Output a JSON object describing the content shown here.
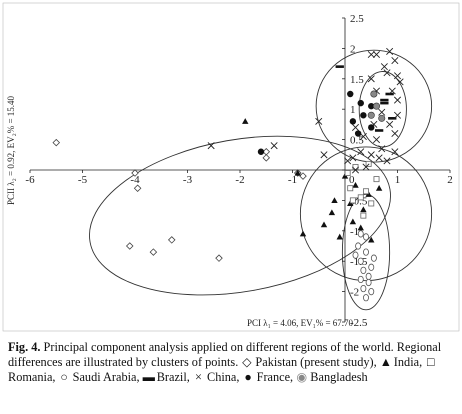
{
  "chart_data": {
    "type": "scatter",
    "xlabel": "PCI λ₁ = 4.06, EV₁% = 67.70",
    "ylabel": "PCII λ₂ = 0.92, EV₂% = 15.40",
    "xlim": [
      -6,
      2
    ],
    "ylim": [
      -2.5,
      2.5
    ],
    "x_ticks": [
      "-6",
      "-5",
      "-4",
      "-3",
      "-2",
      "-1",
      "0",
      "1",
      "2"
    ],
    "y_ticks": [
      "2.5",
      "2",
      "1.5",
      "1",
      "0.5",
      "0",
      "-0.5",
      "-1",
      "-1.5",
      "-2",
      "-2.5"
    ],
    "ellipses": [
      {
        "cx": -2.0,
        "cy": -0.75,
        "rx": 2.9,
        "ry": 1.25,
        "rotation_deg": 10
      },
      {
        "cx": 0.4,
        "cy": -0.72,
        "rx": 1.25,
        "ry": 1.1,
        "rotation_deg": 0
      },
      {
        "cx": 0.55,
        "cy": 1.05,
        "rx": 1.1,
        "ry": 0.92,
        "rotation_deg": 0
      },
      {
        "cx": 0.72,
        "cy": 1.0,
        "rx": 0.45,
        "ry": 0.62,
        "rotation_deg": 0
      },
      {
        "cx": 0.4,
        "cy": -1.35,
        "rx": 0.45,
        "ry": 0.95,
        "rotation_deg": 0
      }
    ],
    "series": [
      {
        "name": "Pakistan (present study)",
        "marker": "diamond",
        "color": "#444444",
        "points": [
          [
            -5.5,
            0.45
          ],
          [
            -4.0,
            -0.05
          ],
          [
            -3.95,
            -0.3
          ],
          [
            -4.1,
            -1.25
          ],
          [
            -3.65,
            -1.35
          ],
          [
            -3.3,
            -1.15
          ],
          [
            -2.4,
            -1.45
          ],
          [
            -1.5,
            0.3
          ],
          [
            -1.5,
            0.2
          ],
          [
            -0.9,
            -0.05
          ],
          [
            -0.8,
            -0.1
          ]
        ]
      },
      {
        "name": "India",
        "marker": "triangle",
        "color": "#111111",
        "points": [
          [
            -1.9,
            0.8
          ],
          [
            -0.9,
            -0.05
          ],
          [
            0.0,
            -0.1
          ],
          [
            -0.2,
            -0.5
          ],
          [
            0.1,
            -0.55
          ],
          [
            -0.25,
            -0.7
          ],
          [
            0.35,
            -0.65
          ],
          [
            0.45,
            -0.4
          ],
          [
            -0.1,
            -1.1
          ],
          [
            -0.8,
            -1.05
          ],
          [
            0.15,
            -0.85
          ],
          [
            0.3,
            -0.95
          ],
          [
            0.5,
            -1.15
          ],
          [
            -0.4,
            -0.9
          ],
          [
            0.2,
            -0.25
          ],
          [
            0.65,
            -0.3
          ]
        ]
      },
      {
        "name": "Romania",
        "marker": "square",
        "color": "#666666",
        "points": [
          [
            0.05,
            -0.05
          ],
          [
            0.2,
            0.05
          ],
          [
            0.3,
            -0.45
          ],
          [
            0.4,
            -0.35
          ],
          [
            0.5,
            -0.55
          ],
          [
            0.15,
            -0.5
          ],
          [
            0.6,
            -0.15
          ],
          [
            0.35,
            -0.75
          ],
          [
            0.45,
            0.1
          ],
          [
            0.1,
            -0.3
          ]
        ]
      },
      {
        "name": "Saudi Arabia",
        "marker": "circle",
        "color": "#555555",
        "points": [
          [
            0.3,
            -1.05
          ],
          [
            0.4,
            -1.1
          ],
          [
            0.25,
            -1.25
          ],
          [
            0.4,
            -1.35
          ],
          [
            0.3,
            -1.5
          ],
          [
            0.5,
            -1.6
          ],
          [
            0.35,
            -1.65
          ],
          [
            0.45,
            -1.75
          ],
          [
            0.3,
            -1.8
          ],
          [
            0.45,
            -1.85
          ],
          [
            0.35,
            -1.95
          ],
          [
            0.5,
            -2.0
          ],
          [
            0.4,
            -2.1
          ],
          [
            0.55,
            -1.45
          ],
          [
            0.2,
            -1.4
          ]
        ]
      },
      {
        "name": "Brazil",
        "marker": "dash",
        "color": "#111111",
        "points": [
          [
            -0.1,
            1.7
          ],
          [
            0.85,
            1.25
          ],
          [
            0.75,
            1.1
          ],
          [
            0.9,
            0.85
          ],
          [
            0.65,
            0.65
          ],
          [
            0.75,
            1.15
          ]
        ]
      },
      {
        "name": "China",
        "marker": "cross",
        "color": "#222222",
        "points": [
          [
            -2.55,
            0.4
          ],
          [
            -1.35,
            0.4
          ],
          [
            -0.5,
            0.8
          ],
          [
            -0.4,
            0.25
          ],
          [
            0.05,
            0.15
          ],
          [
            0.15,
            0.2
          ],
          [
            0.2,
            0.0
          ],
          [
            0.5,
            1.9
          ],
          [
            0.6,
            1.9
          ],
          [
            0.85,
            1.95
          ],
          [
            0.95,
            1.8
          ],
          [
            0.75,
            1.7
          ],
          [
            0.8,
            1.6
          ],
          [
            0.5,
            1.5
          ],
          [
            1.0,
            1.55
          ],
          [
            1.05,
            1.45
          ],
          [
            0.6,
            1.3
          ],
          [
            0.9,
            1.3
          ],
          [
            1.0,
            1.15
          ],
          [
            0.7,
            0.95
          ],
          [
            0.55,
            0.75
          ],
          [
            0.85,
            0.75
          ],
          [
            0.95,
            0.6
          ],
          [
            0.6,
            0.5
          ],
          [
            0.7,
            0.35
          ],
          [
            0.95,
            0.3
          ],
          [
            0.8,
            0.15
          ],
          [
            0.4,
            0.05
          ],
          [
            0.3,
            0.3
          ],
          [
            0.2,
            0.7
          ],
          [
            0.35,
            0.55
          ],
          [
            0.65,
            0.2
          ],
          [
            0.5,
            0.25
          ],
          [
            1.0,
            0.9
          ]
        ]
      },
      {
        "name": "France",
        "marker": "filled-circle",
        "color": "#111111",
        "points": [
          [
            0.1,
            1.25
          ],
          [
            0.3,
            1.1
          ],
          [
            0.15,
            0.8
          ],
          [
            0.5,
            1.05
          ],
          [
            0.35,
            0.9
          ],
          [
            -1.6,
            0.3
          ],
          [
            0.5,
            0.7
          ],
          [
            0.25,
            0.6
          ]
        ]
      },
      {
        "name": "Bangladesh",
        "marker": "grey-circle",
        "color": "#888888",
        "points": [
          [
            0.6,
            1.05
          ],
          [
            0.7,
            0.85
          ],
          [
            0.5,
            0.9
          ],
          [
            0.55,
            1.25
          ]
        ]
      }
    ]
  },
  "caption": {
    "fig_label": "Fig. 4.",
    "text_1": " Principal component analysis applied on different regions of the world. Regional differences are illustrated by clusters of points. ",
    "sym_pakistan": "◇",
    "label_pakistan": " Pakistan (present study), ",
    "sym_india": "▲",
    "label_india": " India, ",
    "sym_romania": "□",
    "label_romania": " Romania, ",
    "sym_saudi": "○",
    "label_saudi": " Saudi Arabia, ",
    "sym_brazil": "▬",
    "label_brazil": " Brazil, ",
    "sym_china": "×",
    "label_china": " China, ",
    "sym_france": "●",
    "label_france": " France, ",
    "sym_bangladesh": "◉",
    "label_bangladesh": " Bangladesh"
  }
}
